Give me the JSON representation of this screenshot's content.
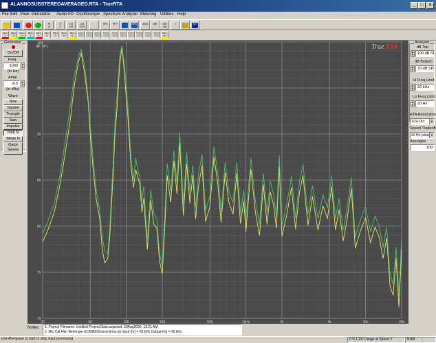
{
  "window": {
    "title": "ALANNOSUBSTEREOAVERAGED.RTA - TrueRTA",
    "buttons": [
      "_",
      "□",
      "×"
    ]
  },
  "menu": [
    "File",
    "Edit",
    "View",
    "Generator",
    "Audio I/O",
    "Oscilloscope",
    "Spectrum Analyzer",
    "Metering",
    "Utilities",
    "Help"
  ],
  "toolbar": {
    "buttons": [
      {
        "name": "generator-icon",
        "text": "",
        "color": "#f0c000"
      },
      {
        "name": "analyzer-icon",
        "text": "",
        "color": "#0050d0"
      },
      {
        "name": "stop-icon",
        "text": "",
        "color": "#e02020"
      },
      {
        "name": "run-icon",
        "text": "",
        "color": "#10b010"
      },
      {
        "name": "rta-view-icon",
        "text": "R\nA",
        "color": ""
      },
      {
        "name": "x1-icon",
        "text": "X\n1",
        "color": ""
      },
      {
        "name": "oct-1-icon",
        "text": "1/1\n1/3",
        "color": ""
      },
      {
        "name": "oct-2-icon",
        "text": "1/6\n1/12",
        "color": ""
      },
      {
        "name": "grid-icon",
        "text": "",
        "color": ""
      },
      {
        "name": "spl-icon",
        "text": "SPL",
        "color": ""
      },
      {
        "name": "fft-icon",
        "text": "FFT",
        "color": ""
      },
      {
        "name": "bar-icon",
        "text": "",
        "color": "#1050c0"
      },
      {
        "name": "noise-spl-icon",
        "text": "SPL",
        "color": "#1050c0"
      },
      {
        "name": "avg-icon",
        "text": "AVG",
        "color": ""
      },
      {
        "name": "peak-icon",
        "text": "dB",
        "color": ""
      },
      {
        "name": "cal-icon",
        "text": "dB\ncal",
        "color": ""
      },
      {
        "name": "meter-icon",
        "text": "↕",
        "color": ""
      },
      {
        "name": "help-bulb-icon",
        "text": "?",
        "color": "#c8a000"
      },
      {
        "name": "context-help-icon",
        "text": "N?",
        "color": "#0030a0"
      }
    ]
  },
  "memories": {
    "labels": [
      "Mem\n1",
      "Mem\n2",
      "Mem\n3",
      "Mem\n4",
      "Mem\n5",
      "Mem\n6",
      "Mem\n7",
      "Mem\n8",
      "Mem\n9",
      "Mem\n10",
      "Mem\n11",
      "Mem\n12",
      "Mem\n13",
      "Mem\n14",
      "Mem\n15",
      "Mem\n16",
      "Mem\n17",
      "Mem\n18",
      "Mem\n19",
      "Mem\n20"
    ],
    "colors": [
      "#d02020",
      "#f0f000",
      "#00c000",
      "#00c0c0",
      "#d02020",
      "#e0e0e0",
      "#e0e0e0",
      "#e0e0e0",
      "#f0f000",
      "#e0e0e0",
      "#e0e0e0",
      "#e0e0e0",
      "#e0e0e0",
      "#e0e0e0",
      "#e0e0e0",
      "#e0e0e0",
      "#e0e0e0",
      "#e0e0e0",
      "#e0e0e0",
      "#f0f000"
    ],
    "active": [
      true,
      true,
      true,
      true,
      true,
      true,
      true,
      true,
      true,
      false,
      false,
      false,
      false,
      false,
      false,
      false,
      false,
      false,
      false,
      true
    ]
  },
  "generator": {
    "title": "Generator",
    "onoff": "On/Off",
    "freq_label": "Freq",
    "freq_value": "1000",
    "freq_unit": "(in Hz)",
    "ampl_label": "Ampl",
    "ampl_value": "-8.0",
    "ampl_unit": "(in dBu)",
    "wave_label": "Wave",
    "waves": [
      "Sine",
      "Square",
      "Triangle",
      "Saw",
      "Impulse",
      "Pink N",
      "White N"
    ],
    "selected_wave": "Pink N",
    "quick_sweep": "Quick Sweep"
  },
  "analyzer": {
    "title": "Analyzer",
    "db_top_label": "dB Top",
    "db_top_value": "100 dB SPL",
    "db_bottom_label": "dB Bottom",
    "db_bottom_value": "70 dB SPL",
    "hi_freq_label": "Hi Freq Limit",
    "hi_freq_value": "20 kHz",
    "lo_freq_label": "Lo Freq Limit",
    "lo_freq_value": "20 Hz",
    "resolution_label": "RTA Resolution",
    "resolution_value": "1/24 Oct",
    "speed_label": "Speed Tradeoff",
    "speed_value": "20 Hz (slow)",
    "averages_label": "Averages",
    "averages_value": "100"
  },
  "chart_data": {
    "type": "line",
    "ylabel": "dB SPL",
    "ylim": [
      70,
      100
    ],
    "xlim": [
      20,
      20000
    ],
    "xscale": "log",
    "y_ticks": [
      "100",
      "95",
      "90",
      "85",
      "80",
      "75",
      "70"
    ],
    "x_ticks": [
      "20",
      "50",
      "100",
      "200",
      "500",
      "1kHz",
      "2k",
      "5k",
      "10k",
      "20k"
    ],
    "x_tick_values": [
      20,
      50,
      100,
      200,
      500,
      1000,
      2000,
      5000,
      10000,
      20000
    ],
    "logo_text_left": "True",
    "logo_text_right": "RTA",
    "grid": true,
    "series": [
      {
        "color": "#e8e860",
        "x": [
          20,
          22,
          25,
          28,
          31,
          34,
          37,
          40,
          42,
          45,
          48,
          50,
          53,
          56,
          60,
          63,
          66,
          70,
          73,
          75,
          78,
          80,
          84,
          88,
          92,
          96,
          100,
          103,
          106,
          110,
          115,
          120,
          125,
          130,
          135,
          140,
          150,
          160,
          170,
          180,
          190,
          200,
          210,
          220,
          235,
          250,
          265,
          280,
          300,
          320,
          340,
          360,
          380,
          400,
          430,
          460,
          500,
          540,
          580,
          620,
          670,
          720,
          780,
          840,
          900,
          960,
          1000,
          1100,
          1200,
          1300,
          1400,
          1500,
          1600,
          1700,
          1800,
          1900,
          2000,
          2200,
          2400,
          2600,
          2800,
          3000,
          3300,
          3600,
          4000,
          4400,
          4800,
          5200,
          5600,
          6000,
          6500,
          7000,
          7600,
          8200,
          9000,
          10000,
          11000,
          12000,
          13000,
          14000,
          15000,
          16000,
          17000,
          18000,
          19000,
          20000
        ],
        "y": [
          78.3,
          79.5,
          81.5,
          84.6,
          88,
          91.5,
          95.5,
          97.9,
          98.8,
          96.5,
          93.5,
          90,
          86,
          83,
          80.8,
          77.5,
          76,
          76.5,
          79,
          82,
          86,
          89.5,
          93,
          97.5,
          99.4,
          97,
          94,
          92,
          89.3,
          86.3,
          84.2,
          86.1,
          85.3,
          84.5,
          81.5,
          83,
          77.5,
          82.8,
          80.2,
          79.8,
          76.2,
          74.8,
          80,
          85.5,
          82.6,
          87.1,
          83.5,
          89,
          81.2,
          86.8,
          82.5,
          85.5,
          80.8,
          84.2,
          86.6,
          80.5,
          82.1,
          87.5,
          84.8,
          80.4,
          85.8,
          82.6,
          81.3,
          85.7,
          80.3,
          82.7,
          79.4,
          86.2,
          81.5,
          79,
          84.5,
          80.2,
          83.7,
          82.3,
          79.8,
          86.5,
          78.9,
          81.3,
          84.2,
          79.7,
          83.6,
          85.5,
          80.1,
          83.2,
          79.6,
          82.2,
          80.8,
          84.3,
          79.6,
          81.8,
          78.4,
          80.7,
          84.1,
          77.6,
          79.4,
          80.9,
          78.2,
          79.9,
          78.8,
          76.5,
          78.7,
          73.5,
          72.5,
          76.5,
          71.2,
          77.5
        ]
      },
      {
        "color": "#4ec070",
        "x": [
          20,
          22,
          25,
          28,
          31,
          34,
          37,
          40,
          42,
          45,
          48,
          50,
          53,
          56,
          60,
          63,
          66,
          70,
          73,
          75,
          78,
          80,
          84,
          88,
          92,
          96,
          100,
          103,
          106,
          110,
          115,
          120,
          125,
          130,
          135,
          140,
          150,
          160,
          170,
          180,
          190,
          200,
          210,
          220,
          235,
          250,
          265,
          280,
          300,
          320,
          340,
          360,
          380,
          400,
          430,
          460,
          500,
          540,
          580,
          620,
          670,
          720,
          780,
          840,
          900,
          960,
          1000,
          1100,
          1200,
          1300,
          1400,
          1500,
          1600,
          1700,
          1800,
          1900,
          2000,
          2200,
          2400,
          2600,
          2800,
          3000,
          3300,
          3600,
          4000,
          4400,
          4800,
          5200,
          5600,
          6000,
          6500,
          7000,
          7600,
          8200,
          9000,
          10000,
          11000,
          12000,
          13000,
          14000,
          15000,
          16000,
          17000,
          18000,
          19000,
          20000
        ],
        "y": [
          79.2,
          80.5,
          82.5,
          85.6,
          89.3,
          93,
          96.5,
          98.5,
          99.2,
          97.3,
          94,
          91,
          87.2,
          84,
          81.7,
          78.9,
          77.3,
          77.1,
          80,
          83.4,
          87.1,
          90.7,
          94.3,
          98.4,
          99.6,
          97.8,
          95.2,
          93.1,
          90.5,
          87.2,
          85.1,
          87.4,
          86,
          85.4,
          82.7,
          84.3,
          78.5,
          83.9,
          81.4,
          80.8,
          77,
          75.7,
          81.3,
          86.8,
          83.8,
          88.2,
          84.7,
          90.2,
          82.4,
          88,
          83.7,
          86.6,
          82,
          85.5,
          87.8,
          81.7,
          83.3,
          88.6,
          85.9,
          81.6,
          86.9,
          83.8,
          82.5,
          86.9,
          81.4,
          83.9,
          80.6,
          87.4,
          82.7,
          80.2,
          85.7,
          81.4,
          84.9,
          83.5,
          81,
          87.7,
          80.1,
          82.5,
          85.4,
          80.9,
          84.8,
          86.7,
          81.3,
          84.4,
          80.8,
          83.4,
          82,
          85.5,
          80.8,
          83,
          79.6,
          81.9,
          85.3,
          78.8,
          80.6,
          82.1,
          79.4,
          81.1,
          80,
          77.7,
          79.9,
          74.7,
          73.7,
          77.7,
          72.4,
          78.7
        ]
      }
    ]
  },
  "notes": {
    "label": "Notes:",
    "line1": "1. Project Filename: Untitled Project     Data acquired: 20Aug2006, 12:21 AM",
    "line2": "2. Mic Cal File: Behringer ECM8000corrections.txt  Input f(s) = 96 kHz   Output f(s) = 96 kHz"
  },
  "status": {
    "hint": "Use Alt+Space to start or stop input processing",
    "cpu": "0 % CPU Usage at Speed 2",
    "num": "NUM"
  }
}
